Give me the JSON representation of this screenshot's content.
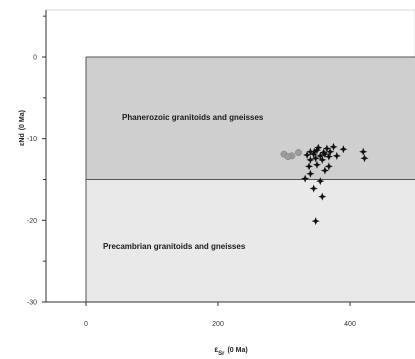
{
  "chart_data": {
    "type": "scatter",
    "title": "",
    "xlabel": "ε_Sr (0 Ma)",
    "xlabel_main": "ε",
    "xlabel_sub": "Sr",
    "xlabel_tail": "(0 Ma)",
    "ylabel": "εNd (0 Ma)",
    "ylabel_main": "εNd",
    "ylabel_tail": "(0 Ma)",
    "xlim": [
      0,
      500
    ],
    "ylim": [
      -30,
      5
    ],
    "xticks": [
      0,
      200,
      400
    ],
    "xtick_labels": [
      "0",
      "200",
      "400"
    ],
    "yticks": [
      0,
      -10,
      -20,
      -30
    ],
    "ytick_labels": [
      "0",
      "-10",
      "-20",
      "-30"
    ],
    "yminor_ticks": [
      5,
      -5,
      -15,
      -25
    ],
    "grid": false,
    "regions": [
      {
        "label": "Phanerozoic granitoids and gneisses",
        "y_range": [
          -15,
          0
        ],
        "color": "#cfcfcf"
      },
      {
        "label": "Precambrian granitoids and gneisses",
        "y_range": [
          -30,
          -15
        ],
        "color": "#e9e9e9"
      }
    ],
    "series": [
      {
        "marker": "star",
        "color": "#111111",
        "points": [
          [
            340,
            -11.6
          ],
          [
            345,
            -11.9
          ],
          [
            350,
            -11.4
          ],
          [
            355,
            -12.1
          ],
          [
            360,
            -11.7
          ],
          [
            365,
            -11.2
          ],
          [
            348,
            -12.4
          ],
          [
            358,
            -12.6
          ],
          [
            370,
            -11.6
          ],
          [
            340,
            -12.6
          ],
          [
            335,
            -12.0
          ],
          [
            375,
            -11.0
          ],
          [
            380,
            -12.1
          ],
          [
            420,
            -11.6
          ],
          [
            422,
            -12.4
          ],
          [
            390,
            -11.3
          ],
          [
            352,
            -11.1
          ],
          [
            362,
            -11.9
          ],
          [
            368,
            -12.2
          ],
          [
            346,
            -11.6
          ],
          [
            338,
            -13.4
          ],
          [
            350,
            -13.2
          ],
          [
            362,
            -13.9
          ],
          [
            368,
            -13.4
          ],
          [
            340,
            -14.3
          ],
          [
            355,
            -15.2
          ],
          [
            332,
            -14.9
          ],
          [
            345,
            -16.1
          ],
          [
            358,
            -17.1
          ],
          [
            348,
            -20.1
          ]
        ]
      },
      {
        "marker": "circle",
        "color": "#9c9c9c",
        "points": [
          [
            300,
            -11.9
          ],
          [
            312,
            -12.1
          ],
          [
            322,
            -11.7
          ],
          [
            306,
            -12.2
          ]
        ]
      }
    ]
  }
}
